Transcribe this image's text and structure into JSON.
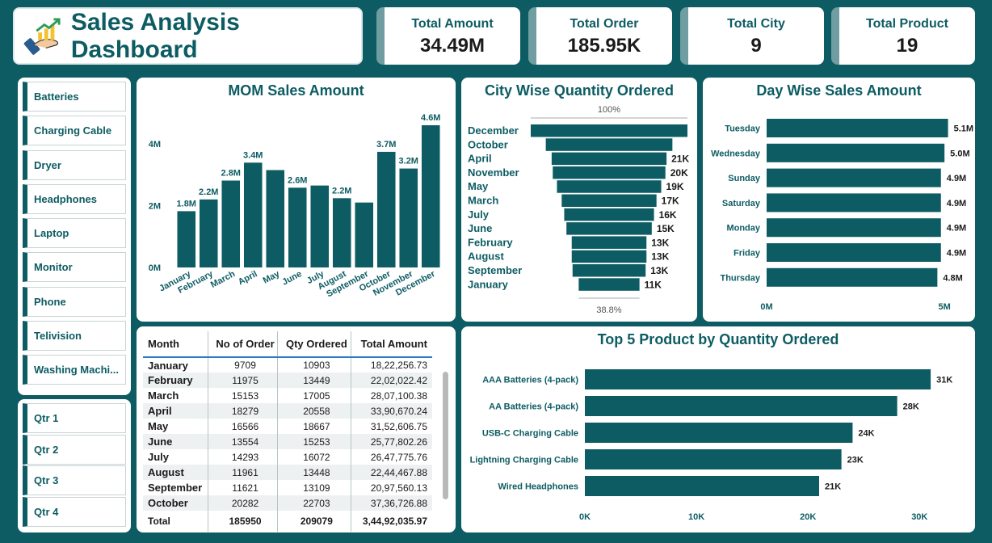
{
  "header": {
    "title": "Sales Analysis Dashboard",
    "logo_icon": "growth-hand-icon"
  },
  "kpis": [
    {
      "label": "Total Amount",
      "value": "34.49M"
    },
    {
      "label": "Total Order",
      "value": "185.95K"
    },
    {
      "label": "Total City",
      "value": "9"
    },
    {
      "label": "Total Product",
      "value": "19"
    }
  ],
  "product_slicer": [
    "Batteries",
    "Charging Cable",
    "Dryer",
    "Headphones",
    "Laptop",
    "Monitor",
    "Phone",
    "Telivision",
    "Washing Machi..."
  ],
  "quarter_slicer": [
    "Qtr 1",
    "Qtr 2",
    "Qtr 3",
    "Qtr 4"
  ],
  "colors": {
    "primary": "#0d5c63",
    "bar": "#0d5c63",
    "card": "#ffffff",
    "table_header_line": "#2a7bbf"
  },
  "chart_data": [
    {
      "id": "mom",
      "type": "bar",
      "title": "MOM Sales Amount",
      "categories": [
        "January",
        "February",
        "March",
        "April",
        "May",
        "June",
        "July",
        "August",
        "September",
        "October",
        "November",
        "December"
      ],
      "values": [
        1.82,
        2.2,
        2.81,
        3.39,
        3.15,
        2.58,
        2.65,
        2.24,
        2.1,
        3.74,
        3.2,
        4.6
      ],
      "data_labels": [
        "1.8M",
        "2.2M",
        "2.8M",
        "3.4M",
        "",
        "2.6M",
        "",
        "2.2M",
        "",
        "3.7M",
        "3.2M",
        "4.6M"
      ],
      "yticks": [
        "0M",
        "2M",
        "4M"
      ],
      "ytick_values": [
        0,
        2,
        4
      ],
      "ylim": [
        0,
        4.6
      ]
    },
    {
      "id": "city",
      "type": "bar",
      "orientation": "funnel",
      "title": "City Wise Quantity Ordered",
      "categories": [
        "December",
        "October",
        "April",
        "November",
        "May",
        "March",
        "July",
        "June",
        "February",
        "August",
        "September",
        "January"
      ],
      "values": [
        28.1,
        22.7,
        20.6,
        20.2,
        18.7,
        17.0,
        16.1,
        15.3,
        13.4,
        13.4,
        13.1,
        10.9
      ],
      "data_labels": [
        "",
        "",
        "21K",
        "20K",
        "19K",
        "17K",
        "16K",
        "15K",
        "13K",
        "13K",
        "13K",
        "11K"
      ],
      "top_label": "100%",
      "bottom_label": "38.8%"
    },
    {
      "id": "day",
      "type": "bar",
      "orientation": "horizontal",
      "title": "Day Wise Sales Amount",
      "categories": [
        "Tuesday",
        "Wednesday",
        "Sunday",
        "Saturday",
        "Monday",
        "Friday",
        "Thursday"
      ],
      "values": [
        5.1,
        5.0,
        4.9,
        4.9,
        4.9,
        4.9,
        4.8
      ],
      "data_labels": [
        "5.1M",
        "5.0M",
        "4.9M",
        "4.9M",
        "4.9M",
        "4.9M",
        "4.8M"
      ],
      "xticks": [
        "0M",
        "5M"
      ],
      "xtick_values": [
        0,
        5
      ],
      "xlim": [
        0,
        5.7
      ]
    },
    {
      "id": "top5",
      "type": "bar",
      "orientation": "horizontal",
      "title": "Top 5 Product by Quantity Ordered",
      "categories": [
        "AAA Batteries (4-pack)",
        "AA Batteries (4-pack)",
        "USB-C Charging Cable",
        "Lightning Charging Cable",
        "Wired Headphones"
      ],
      "values": [
        31,
        28,
        24,
        23,
        21
      ],
      "data_labels": [
        "31K",
        "28K",
        "24K",
        "23K",
        "21K"
      ],
      "xticks": [
        "0K",
        "10K",
        "20K",
        "30K"
      ],
      "xtick_values": [
        0,
        10,
        20,
        30
      ],
      "xlim": [
        0,
        31.5
      ]
    }
  ],
  "table": {
    "columns": [
      "Month",
      "No of Order",
      "Qty Ordered",
      "Total Amount"
    ],
    "rows": [
      [
        "January",
        "9709",
        "10903",
        "18,22,256.73"
      ],
      [
        "February",
        "11975",
        "13449",
        "22,02,022.42"
      ],
      [
        "March",
        "15153",
        "17005",
        "28,07,100.38"
      ],
      [
        "April",
        "18279",
        "20558",
        "33,90,670.24"
      ],
      [
        "May",
        "16566",
        "18667",
        "31,52,606.75"
      ],
      [
        "June",
        "13554",
        "15253",
        "25,77,802.26"
      ],
      [
        "July",
        "14293",
        "16072",
        "26,47,775.76"
      ],
      [
        "August",
        "11961",
        "13448",
        "22,44,467.88"
      ],
      [
        "September",
        "11621",
        "13109",
        "20,97,560.13"
      ],
      [
        "October",
        "20282",
        "22703",
        "37,36,726.88"
      ]
    ],
    "total": [
      "Total",
      "185950",
      "209079",
      "3,44,92,035.97"
    ]
  }
}
